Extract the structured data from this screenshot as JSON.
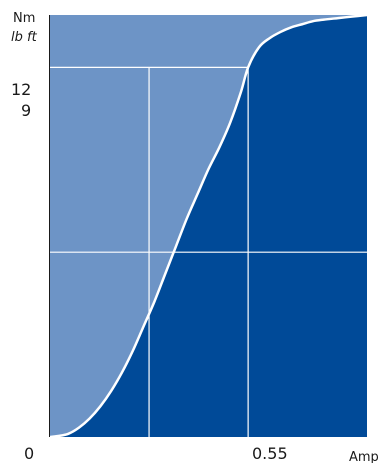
{
  "chart_data": {
    "type": "area",
    "y_unit_primary": "Nm",
    "y_unit_secondary": "lb ft",
    "x_unit": "Amp",
    "x_origin_label": "0",
    "x_marker_label": "0.55",
    "y_marker_label_primary": "12",
    "y_marker_label_secondary": "9",
    "x_marker": 0.55,
    "y_marker": 12,
    "xlim": [
      0,
      0.88
    ],
    "ylim": [
      0,
      13.7
    ],
    "grid": "crosshair at marker and midlines",
    "series": [
      {
        "x": [
          0,
          0.02,
          0.05,
          0.08,
          0.11,
          0.14,
          0.17,
          0.2,
          0.23,
          0.26,
          0.29,
          0.32,
          0.35,
          0.38,
          0.41,
          0.44,
          0.47,
          0.5,
          0.53,
          0.55,
          0.58,
          0.61,
          0.64,
          0.67,
          0.7,
          0.73,
          0.76,
          0.8,
          0.84,
          0.88
        ],
        "values": [
          0,
          0.03,
          0.1,
          0.3,
          0.6,
          1.0,
          1.5,
          2.1,
          2.8,
          3.6,
          4.4,
          5.3,
          6.2,
          7.1,
          7.9,
          8.7,
          9.4,
          10.2,
          11.2,
          12.0,
          12.65,
          12.95,
          13.15,
          13.3,
          13.4,
          13.5,
          13.55,
          13.6,
          13.65,
          13.7
        ]
      }
    ],
    "colors": {
      "background_fill": "#6d94c6",
      "area_fill": "#004a98",
      "curve": "#ffffff",
      "grid": "#ffffff",
      "axis": "#1a1a1a"
    }
  }
}
